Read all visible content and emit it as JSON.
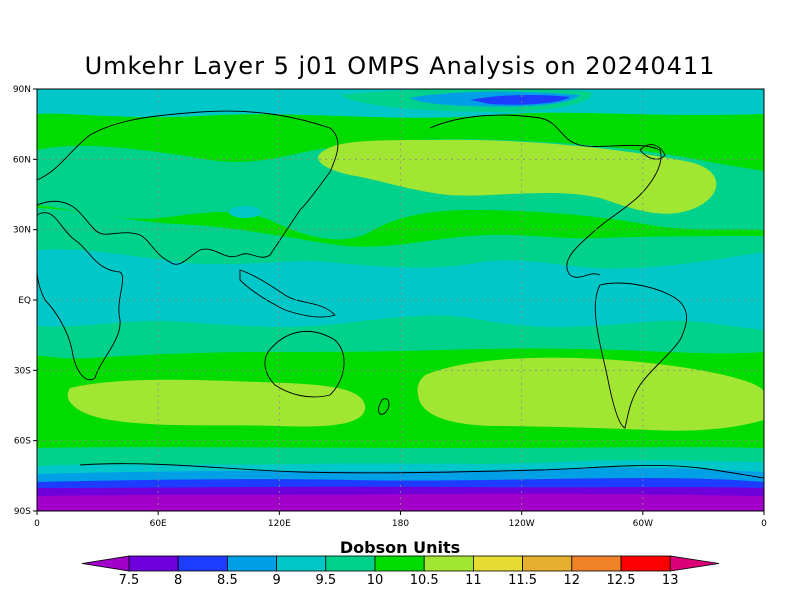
{
  "title": "Umkehr Layer 5 j01 OMPS Analysis on 20240411",
  "colorbar": {
    "title": "Dobson Units",
    "labels": [
      "7.5",
      "8",
      "8.5",
      "9",
      "9.5",
      "10",
      "10.5",
      "11",
      "11.5",
      "12",
      "12.5",
      "13"
    ],
    "colors": [
      "#a000c8",
      "#6e00dc",
      "#1e3cff",
      "#00a0e6",
      "#00c8c8",
      "#00d28c",
      "#00dc00",
      "#a0e632",
      "#e6dc32",
      "#e6af2d",
      "#f08228",
      "#fa0000",
      "#dc0078"
    ]
  },
  "axes": {
    "y_ticks": [
      "90N",
      "60N",
      "30N",
      "EQ",
      "30S",
      "60S",
      "90S"
    ],
    "x_ticks": [
      "0",
      "60E",
      "120E",
      "180",
      "120W",
      "60W",
      "0"
    ]
  },
  "map": {
    "projection": "cylindrical equidistant",
    "lon_range": [
      0,
      360
    ],
    "lat_range": [
      -90,
      90
    ],
    "gridlines": true,
    "background_color": "#00dc00"
  }
}
